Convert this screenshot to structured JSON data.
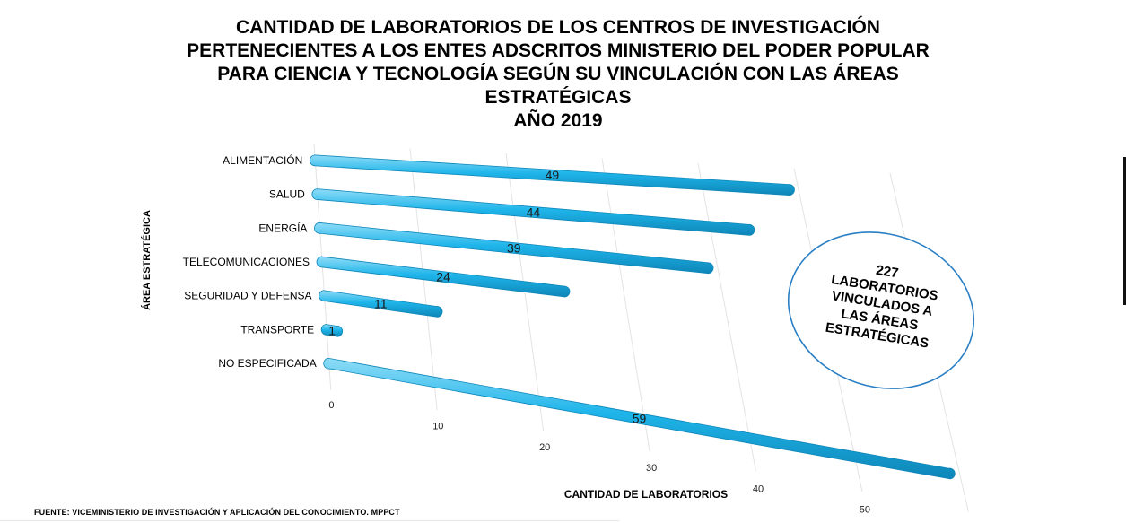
{
  "chart_data": {
    "type": "bar",
    "orientation": "horizontal",
    "style": "3d-perspective",
    "title_lines": [
      "CANTIDAD DE LABORATORIOS DE LOS CENTROS DE INVESTIGACIÓN",
      "PERTENECIENTES A LOS ENTES ADSCRITOS MINISTERIO DEL PODER POPULAR",
      "PARA CIENCIA Y TECNOLOGÍA SEGÚN SU VINCULACIÓN CON LAS ÁREAS",
      "ESTRATÉGICAS",
      "AÑO 2019"
    ],
    "categories": [
      "ALIMENTACIÓN",
      "SALUD",
      "ENERGÍA",
      "TELECOMUNICACIONES",
      "SEGURIDAD Y DEFENSA",
      "TRANSPORTE",
      "NO ESPECIFICADA"
    ],
    "values": [
      49,
      44,
      39,
      24,
      11,
      1,
      59
    ],
    "xlabel": "CANTIDAD DE LABORATORIOS",
    "ylabel": "ÁREA ESTRATÉGICA",
    "xlim": [
      0,
      60
    ],
    "xticks": [
      0,
      10,
      20,
      30,
      40,
      50,
      60
    ],
    "grid": true,
    "bar_color": "#1fb5ea",
    "bar_shade": "#0e86b8",
    "bar_highlight": "#8fdcf7",
    "callout": {
      "lines": [
        "227",
        "LABORATORIOS",
        "VINCULADOS A",
        "LAS ÁREAS",
        "ESTRATÉGICAS"
      ],
      "border_color": "#2a7fc4"
    }
  },
  "footer": "FUENTE: VICEMINISTERIO DE INVESTIGACIÓN Y APLICACIÓN DEL CONOCIMIENTO. MPPCT"
}
